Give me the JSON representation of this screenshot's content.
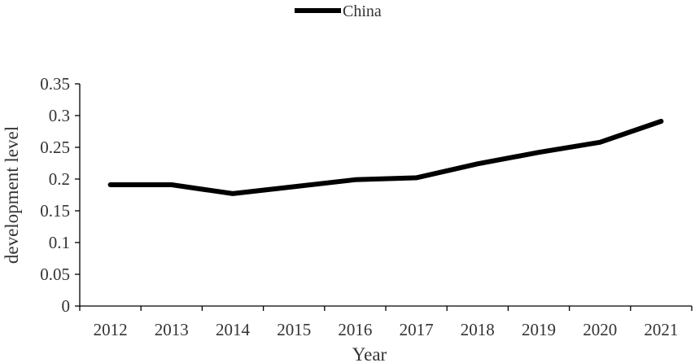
{
  "chart_data": {
    "type": "line",
    "title": "",
    "xlabel": "Year",
    "ylabel": "development level",
    "categories": [
      "2012",
      "2013",
      "2014",
      "2015",
      "2016",
      "2017",
      "2018",
      "2019",
      "2020",
      "2021"
    ],
    "series": [
      {
        "name": "China",
        "color": "#000000",
        "values": [
          0.191,
          0.191,
          0.177,
          0.188,
          0.199,
          0.202,
          0.224,
          0.242,
          0.258,
          0.291
        ]
      }
    ],
    "ylim": [
      0,
      0.35
    ],
    "yticks": [
      "0",
      "0.05",
      "0.1",
      "0.15",
      "0.2",
      "0.25",
      "0.3",
      "0.35"
    ],
    "grid": false,
    "legend": "top-center"
  }
}
